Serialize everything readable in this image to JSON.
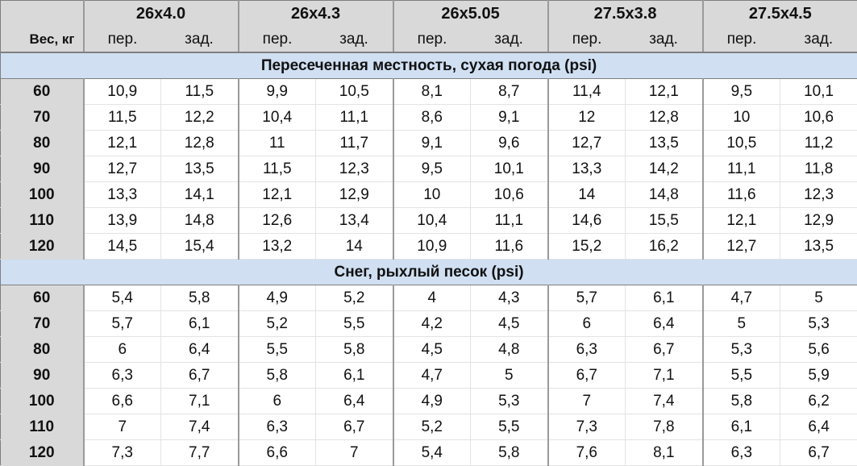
{
  "header": {
    "weight_label": "Вес, кг",
    "front_label": "пер.",
    "rear_label": "зад.",
    "tire_sizes": [
      "26x4.0",
      "26x4.3",
      "26x5.05",
      "27.5x3.8",
      "27.5x4.5"
    ]
  },
  "sections": [
    {
      "title": "Пересеченная местность, сухая погода (psi)",
      "rows": [
        {
          "weight": "60",
          "values": [
            "10,9",
            "11,5",
            "9,9",
            "10,5",
            "8,1",
            "8,7",
            "11,4",
            "12,1",
            "9,5",
            "10,1"
          ]
        },
        {
          "weight": "70",
          "values": [
            "11,5",
            "12,2",
            "10,4",
            "11,1",
            "8,6",
            "9,1",
            "12",
            "12,8",
            "10",
            "10,6"
          ]
        },
        {
          "weight": "80",
          "values": [
            "12,1",
            "12,8",
            "11",
            "11,7",
            "9,1",
            "9,6",
            "12,7",
            "13,5",
            "10,5",
            "11,2"
          ]
        },
        {
          "weight": "90",
          "values": [
            "12,7",
            "13,5",
            "11,5",
            "12,3",
            "9,5",
            "10,1",
            "13,3",
            "14,2",
            "11,1",
            "11,8"
          ]
        },
        {
          "weight": "100",
          "values": [
            "13,3",
            "14,1",
            "12,1",
            "12,9",
            "10",
            "10,6",
            "14",
            "14,8",
            "11,6",
            "12,3"
          ]
        },
        {
          "weight": "110",
          "values": [
            "13,9",
            "14,8",
            "12,6",
            "13,4",
            "10,4",
            "11,1",
            "14,6",
            "15,5",
            "12,1",
            "12,9"
          ]
        },
        {
          "weight": "120",
          "values": [
            "14,5",
            "15,4",
            "13,2",
            "14",
            "10,9",
            "11,6",
            "15,2",
            "16,2",
            "12,7",
            "13,5"
          ]
        }
      ]
    },
    {
      "title": "Снег, рыхлый песок (psi)",
      "rows": [
        {
          "weight": "60",
          "values": [
            "5,4",
            "5,8",
            "4,9",
            "5,2",
            "4",
            "4,3",
            "5,7",
            "6,1",
            "4,7",
            "5"
          ]
        },
        {
          "weight": "70",
          "values": [
            "5,7",
            "6,1",
            "5,2",
            "5,5",
            "4,2",
            "4,5",
            "6",
            "6,4",
            "5",
            "5,3"
          ]
        },
        {
          "weight": "80",
          "values": [
            "6",
            "6,4",
            "5,5",
            "5,8",
            "4,5",
            "4,8",
            "6,3",
            "6,7",
            "5,3",
            "5,6"
          ]
        },
        {
          "weight": "90",
          "values": [
            "6,3",
            "6,7",
            "5,8",
            "6,1",
            "4,7",
            "5",
            "6,7",
            "7,1",
            "5,5",
            "5,9"
          ]
        },
        {
          "weight": "100",
          "values": [
            "6,6",
            "7,1",
            "6",
            "6,4",
            "4,9",
            "5,3",
            "7",
            "7,4",
            "5,8",
            "6,2"
          ]
        },
        {
          "weight": "110",
          "values": [
            "7",
            "7,4",
            "6,3",
            "6,7",
            "5,2",
            "5,5",
            "7,3",
            "7,8",
            "6,1",
            "6,4"
          ]
        },
        {
          "weight": "120",
          "values": [
            "7,3",
            "7,7",
            "6,6",
            "7",
            "5,4",
            "5,8",
            "7,6",
            "8,1",
            "6,3",
            "6,7"
          ]
        }
      ]
    }
  ],
  "colors": {
    "header_bg": "#d9d9d9",
    "section_bg": "#d0dff2",
    "cell_bg": "#ffffff"
  }
}
